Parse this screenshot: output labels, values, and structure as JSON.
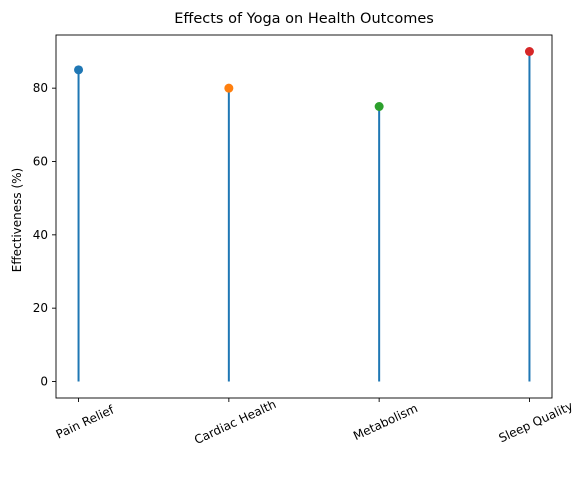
{
  "chart_data": {
    "type": "lollipop",
    "title": "Effects of Yoga on Health Outcomes",
    "xlabel": "",
    "ylabel": "Effectiveness (%)",
    "categories": [
      "Pain Relief",
      "Cardiac Health",
      "Metabolism",
      "Sleep Quality"
    ],
    "values": [
      85,
      80,
      75,
      90
    ],
    "marker_colors": [
      "#1f77b4",
      "#ff7f0e",
      "#2ca02c",
      "#d62728"
    ],
    "stem_color": "#1f77b4",
    "ylim": [
      -4.5,
      94.5
    ],
    "yticks": [
      0,
      20,
      40,
      60,
      80
    ],
    "xtick_rotation": -25,
    "grid": false,
    "legend": "none"
  }
}
